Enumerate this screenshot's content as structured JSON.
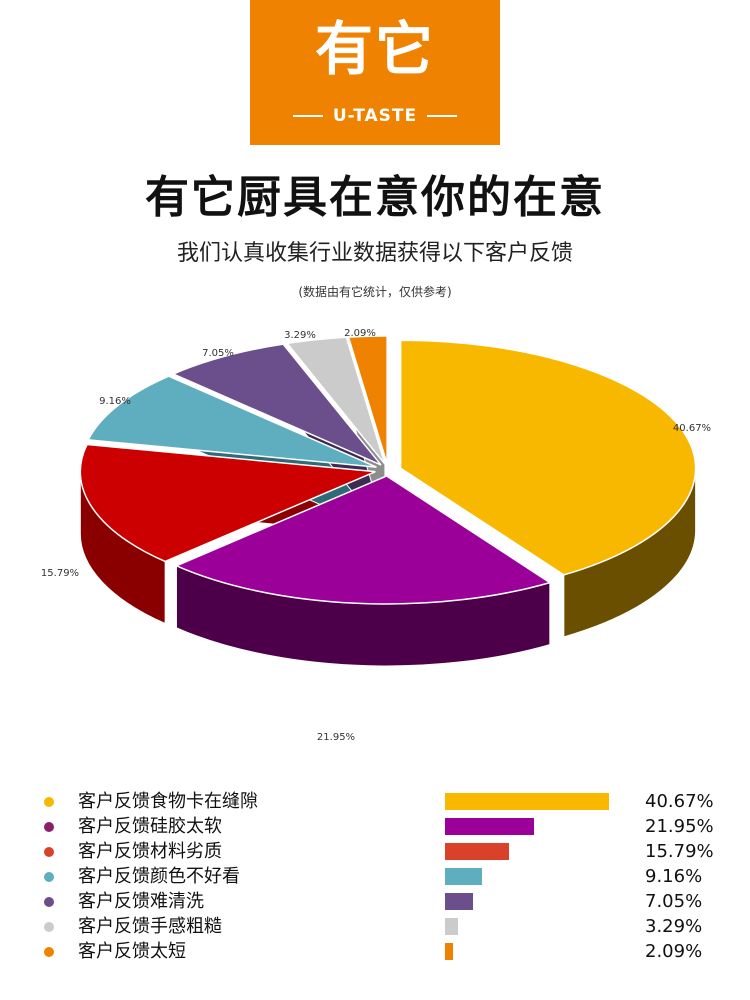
{
  "logo": {
    "cn": "有它",
    "en": "U-TASTE"
  },
  "header": {
    "title": "有它厨具在意你的在意",
    "subtitle": "我们认真收集行业数据获得以下客户反馈",
    "note": "(数据由有它统计，仅供参考)"
  },
  "chart_data": {
    "type": "pie",
    "title": "",
    "legend_position": "bottom",
    "slices": [
      {
        "label": "客户反馈食物卡在缝隙",
        "value": 40.67,
        "value_label": "40.67%",
        "color": "#f9b800",
        "side_color": "#6b4f00"
      },
      {
        "label": "客户反馈硅胶太软",
        "value": 21.95,
        "value_label": "21.95%",
        "color": "#9b0099",
        "side_color": "#4d0049"
      },
      {
        "label": "客户反馈材料劣质",
        "value": 15.79,
        "value_label": "15.79%",
        "color": "#cc0000",
        "side_color": "#8a0000"
      },
      {
        "label": "客户反馈颜色不好看",
        "value": 9.16,
        "value_label": "9.16%",
        "color": "#5eaebf",
        "side_color": "#2e6a78"
      },
      {
        "label": "客户反馈难清洗",
        "value": 7.05,
        "value_label": "7.05%",
        "color": "#6b4e8c",
        "side_color": "#3d2b52"
      },
      {
        "label": "客户反馈手感粗糙",
        "value": 3.29,
        "value_label": "3.29%",
        "color": "#cbcbcb",
        "side_color": "#8d8d8d"
      },
      {
        "label": "客户反馈太短",
        "value": 2.09,
        "value_label": "2.09%",
        "color": "#ef8200",
        "side_color": "#9a5300"
      }
    ]
  },
  "legend": {
    "items": [
      {
        "label": "客户反馈食物卡在缝隙",
        "value": "40.67%",
        "fraction": 0.4067,
        "dot_color": "#f9b800",
        "bar_color": "#f9b800"
      },
      {
        "label": "客户反馈硅胶太软",
        "value": "21.95%",
        "fraction": 0.2195,
        "dot_color": "#8a1f6e",
        "bar_color": "#9b0099"
      },
      {
        "label": "客户反馈材料劣质",
        "value": "15.79%",
        "fraction": 0.1579,
        "dot_color": "#d9412b",
        "bar_color": "#d9412b"
      },
      {
        "label": "客户反馈颜色不好看",
        "value": "9.16%",
        "fraction": 0.0916,
        "dot_color": "#5eaebf",
        "bar_color": "#5eaebf"
      },
      {
        "label": "客户反馈难清洗",
        "value": "7.05%",
        "fraction": 0.0705,
        "dot_color": "#6b4e8c",
        "bar_color": "#6b4e8c"
      },
      {
        "label": "客户反馈手感粗糙",
        "value": "3.29%",
        "fraction": 0.0329,
        "dot_color": "#cbcbcb",
        "bar_color": "#cbcbcb"
      },
      {
        "label": "客户反馈太短",
        "value": "2.09%",
        "fraction": 0.0209,
        "dot_color": "#ef8200",
        "bar_color": "#ef8200"
      }
    ]
  }
}
